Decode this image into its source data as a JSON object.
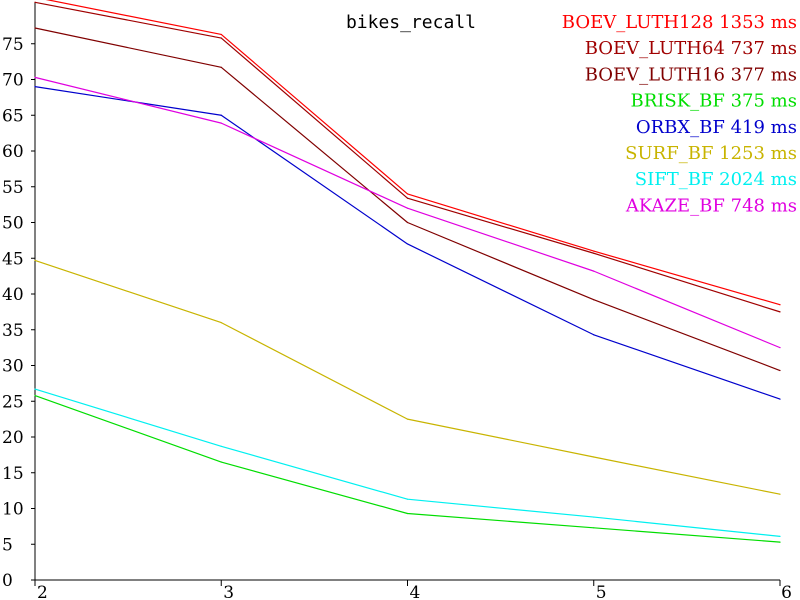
{
  "chart_data": {
    "type": "line",
    "title": "bikes_recall",
    "xlabel": "",
    "ylabel": "",
    "x": [
      2,
      3,
      4,
      5,
      6
    ],
    "xlim": [
      2,
      6
    ],
    "ylim": [
      0,
      80
    ],
    "x_ticks": [
      "2",
      "3",
      "4",
      "5",
      "6"
    ],
    "y_ticks": [
      "0",
      "5",
      "10",
      "15",
      "20",
      "25",
      "30",
      "35",
      "40",
      "45",
      "50",
      "55",
      "60",
      "65",
      "70",
      "75"
    ],
    "grid": false,
    "legend_position": "top-right",
    "series": [
      {
        "name": "BOEV_LUTH128",
        "label": "BOEV_LUTH128 1353 ms",
        "color": "#ff0000",
        "values": [
          81.5,
          76.3,
          54.0,
          46.0,
          38.5
        ]
      },
      {
        "name": "BOEV_LUTH64",
        "label": "BOEV_LUTH64 737 ms",
        "color": "#a00000",
        "values": [
          80.8,
          75.8,
          53.4,
          45.7,
          37.5
        ]
      },
      {
        "name": "BOEV_LUTH16",
        "label": "BOEV_LUTH16 377 ms",
        "color": "#800000",
        "values": [
          77.2,
          71.7,
          50.0,
          39.2,
          29.3
        ]
      },
      {
        "name": "BRISK_BF",
        "label": "BRISK_BF 375 ms",
        "color": "#00dd00",
        "values": [
          25.8,
          16.5,
          9.3,
          7.3,
          5.3
        ]
      },
      {
        "name": "ORBX_BF",
        "label": "ORBX_BF 419 ms",
        "color": "#0000cc",
        "values": [
          69.0,
          65.0,
          47.0,
          34.3,
          25.3
        ]
      },
      {
        "name": "SURF_BF",
        "label": "SURF_BF 1253 ms",
        "color": "#c8b400",
        "values": [
          44.7,
          36.0,
          22.5,
          17.2,
          12.0
        ]
      },
      {
        "name": "SIFT_BF",
        "label": "SIFT_BF 2024 ms",
        "color": "#00f0f0",
        "values": [
          26.7,
          18.7,
          11.3,
          8.8,
          6.1
        ]
      },
      {
        "name": "AKAZE_BF",
        "label": "AKAZE_BF 748 ms",
        "color": "#e000e0",
        "values": [
          70.3,
          63.9,
          52.0,
          43.2,
          32.5
        ]
      }
    ]
  }
}
